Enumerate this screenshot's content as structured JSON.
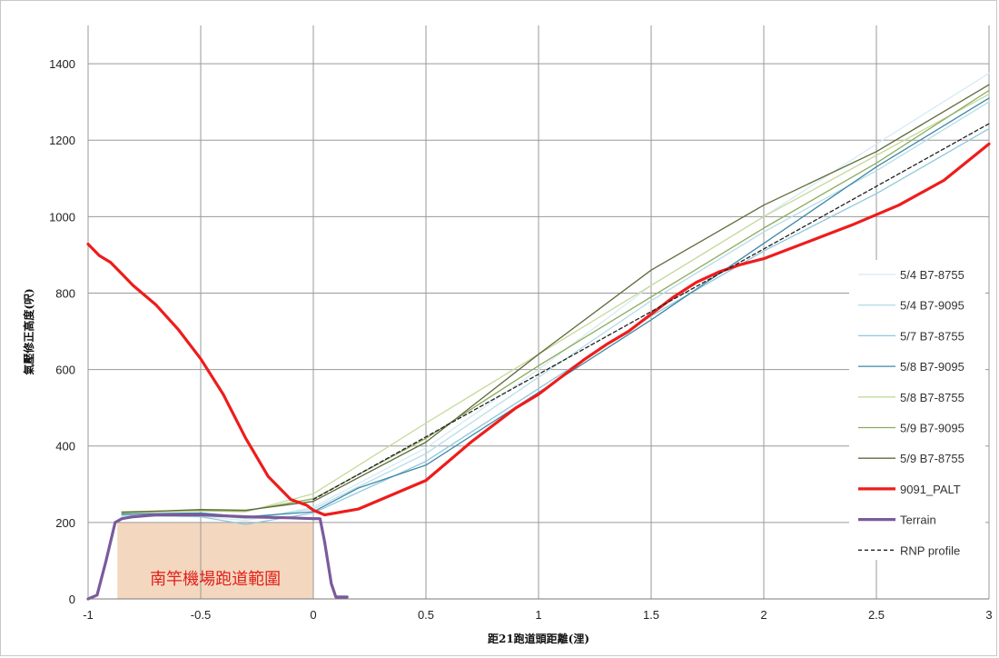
{
  "chart_data": {
    "type": "line",
    "title": "",
    "xlabel": "距21跑道頭距離(浬)",
    "ylabel": "氣壓修正高度(呎)",
    "xlim": [
      -1,
      3
    ],
    "ylim": [
      0,
      1500
    ],
    "x_ticks": [
      "-1",
      "-0.5",
      "0",
      "0.5",
      "1",
      "1.5",
      "2",
      "2.5",
      "3"
    ],
    "y_ticks": [
      "0",
      "200",
      "400",
      "600",
      "800",
      "1000",
      "1200",
      "1400"
    ],
    "grid": true,
    "legend_position": "right",
    "region": {
      "label": "南竿機場跑道範圍",
      "x": [
        -0.87,
        0
      ],
      "y": [
        0,
        200
      ],
      "color": "#f4d7bf"
    },
    "series": [
      {
        "name": "5/4 B7-8755",
        "color": "#d6ebf2",
        "width": 1.3,
        "dash": "",
        "x": [
          -0.85,
          -0.5,
          -0.3,
          0,
          0.5,
          1,
          1.5,
          2,
          2.5,
          3
        ],
        "y": [
          215,
          216,
          205,
          240,
          395,
          600,
          820,
          1000,
          1190,
          1375
        ]
      },
      {
        "name": "5/4 B7-9095",
        "color": "#b7dde8",
        "width": 1.3,
        "dash": "",
        "x": [
          -0.85,
          -0.5,
          -0.3,
          0,
          0.5,
          1,
          1.5,
          2,
          2.5,
          3
        ],
        "y": [
          218,
          222,
          210,
          235,
          380,
          580,
          780,
          960,
          1120,
          1300
        ]
      },
      {
        "name": "5/7 B7-8755",
        "color": "#8fc8dd",
        "width": 1.3,
        "dash": "",
        "x": [
          -0.85,
          -0.5,
          -0.3,
          0,
          0.5,
          1,
          1.5,
          2,
          2.5,
          3
        ],
        "y": [
          220,
          215,
          195,
          225,
          360,
          550,
          740,
          910,
          1060,
          1230
        ]
      },
      {
        "name": "5/8 B7-9095",
        "color": "#3e88a6",
        "width": 1.3,
        "dash": "",
        "x": [
          -0.85,
          -0.5,
          -0.3,
          0,
          0.2,
          0.5,
          1,
          1.5,
          2,
          2.5,
          3
        ],
        "y": [
          222,
          225,
          215,
          228,
          290,
          350,
          540,
          730,
          930,
          1130,
          1310
        ]
      },
      {
        "name": "5/8 B7-8755",
        "color": "#c6d99b",
        "width": 1.3,
        "dash": "",
        "x": [
          -0.85,
          -0.5,
          -0.3,
          0,
          0.5,
          1,
          1.5,
          2,
          2.5,
          3
        ],
        "y": [
          225,
          230,
          228,
          275,
          460,
          640,
          820,
          1000,
          1160,
          1320
        ]
      },
      {
        "name": "5/9 B7-9095",
        "color": "#8bab5a",
        "width": 1.3,
        "dash": "",
        "x": [
          -0.85,
          -0.5,
          -0.3,
          0,
          0.5,
          1,
          1.5,
          2,
          2.5,
          3
        ],
        "y": [
          228,
          232,
          230,
          262,
          420,
          610,
          790,
          970,
          1140,
          1330
        ]
      },
      {
        "name": "5/9 B7-8755",
        "color": "#5e6b3c",
        "width": 1.3,
        "dash": "",
        "x": [
          -0.85,
          -0.5,
          -0.3,
          0,
          0.5,
          1,
          1.5,
          2,
          2.5,
          3
        ],
        "y": [
          226,
          234,
          232,
          255,
          410,
          640,
          860,
          1030,
          1170,
          1345
        ]
      },
      {
        "name": "9091_PALT",
        "color": "#ee1c1c",
        "width": 3.2,
        "dash": "",
        "x": [
          -1,
          -0.95,
          -0.9,
          -0.85,
          -0.8,
          -0.7,
          -0.6,
          -0.5,
          -0.4,
          -0.3,
          -0.2,
          -0.1,
          -0.03,
          0,
          0.05,
          0.1,
          0.2,
          0.3,
          0.4,
          0.5,
          0.6,
          0.7,
          0.8,
          0.9,
          1,
          1.1,
          1.2,
          1.3,
          1.4,
          1.5,
          1.6,
          1.7,
          1.8,
          1.9,
          2,
          2.2,
          2.4,
          2.6,
          2.8,
          3
        ],
        "y": [
          928,
          898,
          880,
          850,
          820,
          770,
          705,
          628,
          535,
          420,
          320,
          260,
          245,
          232,
          220,
          225,
          235,
          260,
          285,
          310,
          360,
          410,
          455,
          500,
          535,
          580,
          625,
          665,
          700,
          745,
          790,
          828,
          855,
          875,
          890,
          935,
          980,
          1030,
          1095,
          1190
        ]
      },
      {
        "name": "Terrain",
        "color": "#7a5a9c",
        "width": 3.2,
        "dash": "",
        "x": [
          -1,
          -0.96,
          -0.92,
          -0.88,
          -0.85,
          -0.8,
          -0.7,
          -0.5,
          -0.3,
          -0.1,
          0,
          0.03,
          0.05,
          0.08,
          0.1,
          0.15
        ],
        "y": [
          0,
          10,
          100,
          200,
          210,
          215,
          220,
          220,
          215,
          212,
          210,
          210,
          150,
          40,
          5,
          5
        ]
      },
      {
        "name": "RNP profile",
        "color": "#222222",
        "width": 1.3,
        "dash": "4,3",
        "x": [
          0,
          3
        ],
        "y": [
          260,
          1243
        ]
      }
    ]
  }
}
